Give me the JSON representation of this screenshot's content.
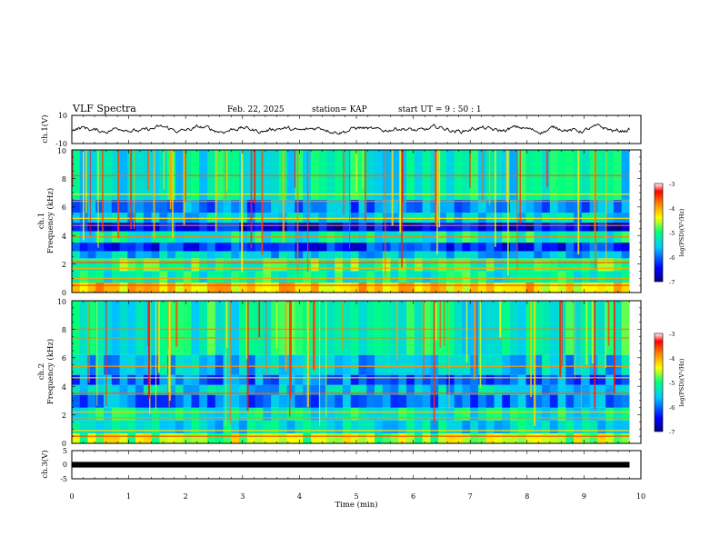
{
  "header": {
    "title": "VLF Spectra",
    "date": "Feb. 22, 2025",
    "station": "station= KAP",
    "start_ut": "start  UT =   9  : 50 : 1"
  },
  "chart_data": [
    {
      "type": "line",
      "name": "ch1-waveform",
      "ylabel": "ch.1(V)",
      "ylim": [
        -10,
        10
      ],
      "y_ticks": [
        "10",
        "-10"
      ],
      "xlim": [
        0,
        10
      ],
      "xlabel": "Time  (min)",
      "series": [
        {
          "name": "ch.1 voltage envelope",
          "x": [
            0,
            9.8
          ],
          "range": [
            -5,
            5
          ]
        }
      ]
    },
    {
      "type": "heatmap",
      "name": "ch1-spectrogram",
      "ylabel_top": "ch.1",
      "ylabel": "Frequency (kHz)",
      "ylim": [
        0,
        10
      ],
      "y_ticks": [
        "0",
        "2",
        "4",
        "6",
        "8",
        "10"
      ],
      "xlim": [
        0,
        10
      ],
      "data_end_min": 9.8,
      "colorbar": {
        "label": "log(PSD)(V²/Hz)",
        "range": [
          -7,
          -3
        ],
        "ticks": [
          "-3",
          "-4",
          "-5",
          "-6",
          "-7"
        ]
      },
      "bands_khz": [
        {
          "from": 0,
          "to": 0.7,
          "level": -4.2
        },
        {
          "from": 0.7,
          "to": 1.5,
          "level": -5.2
        },
        {
          "from": 1.5,
          "to": 2.4,
          "level": -5.0
        },
        {
          "from": 2.4,
          "to": 2.9,
          "level": -5.6
        },
        {
          "from": 2.9,
          "to": 3.5,
          "level": -6.3
        },
        {
          "from": 3.5,
          "to": 4.3,
          "level": -5.2
        },
        {
          "from": 4.3,
          "to": 4.9,
          "level": -6.5
        },
        {
          "from": 4.9,
          "to": 5.6,
          "level": -5.5
        },
        {
          "from": 5.6,
          "to": 6.5,
          "level": -5.9
        },
        {
          "from": 6.5,
          "to": 10,
          "level": -5.3
        }
      ],
      "lines_khz": [
        0.5,
        1.0,
        1.7,
        2.1,
        2.3,
        3.9,
        4.7,
        5.2,
        6.4,
        6.9,
        8.2
      ]
    },
    {
      "type": "heatmap",
      "name": "ch2-spectrogram",
      "ylabel_top": "ch.2",
      "ylabel": "Frequency (kHz)",
      "ylim": [
        0,
        10
      ],
      "y_ticks": [
        "0",
        "2",
        "4",
        "6",
        "8",
        "10"
      ],
      "xlim": [
        0,
        10
      ],
      "data_end_min": 9.8,
      "colorbar": {
        "label": "log(PSD)(V²/Hz)",
        "range": [
          -7,
          -3
        ],
        "ticks": [
          "-3",
          "-4",
          "-5",
          "-6",
          "-7"
        ]
      },
      "bands_khz": [
        {
          "from": 0,
          "to": 0.7,
          "level": -4.6
        },
        {
          "from": 0.7,
          "to": 1.6,
          "level": -5.4
        },
        {
          "from": 1.6,
          "to": 2.5,
          "level": -5.3
        },
        {
          "from": 2.5,
          "to": 3.4,
          "level": -5.9
        },
        {
          "from": 3.4,
          "to": 4.1,
          "level": -5.5
        },
        {
          "from": 4.1,
          "to": 4.8,
          "level": -6.0
        },
        {
          "from": 4.8,
          "to": 6.2,
          "level": -5.6
        },
        {
          "from": 6.2,
          "to": 10,
          "level": -5.2
        }
      ],
      "lines_khz": [
        0.5,
        0.9,
        1.8,
        2.2,
        3.5,
        4.6,
        5.4,
        7.4,
        8.0
      ]
    },
    {
      "type": "line",
      "name": "ch3-waveform",
      "ylabel": "ch.3(V)",
      "ylim": [
        -5,
        5
      ],
      "y_ticks": [
        "5",
        "0",
        "-5"
      ],
      "xlim": [
        0,
        10
      ],
      "x_ticks": [
        "0",
        "1",
        "2",
        "3",
        "4",
        "5",
        "6",
        "7",
        "8",
        "9",
        "10"
      ],
      "xlabel": "Time  (min)",
      "series": [
        {
          "name": "ch.3 voltage",
          "x": [
            0,
            9.8
          ],
          "range": [
            -0.5,
            0.5
          ]
        }
      ]
    }
  ],
  "colors": {
    "frame": "#000000",
    "background": "#ffffff",
    "colormap": [
      "#000080",
      "#0000ff",
      "#00c8ff",
      "#00ff80",
      "#ffff00",
      "#ff8000",
      "#ff0000",
      "#ffffff"
    ]
  }
}
